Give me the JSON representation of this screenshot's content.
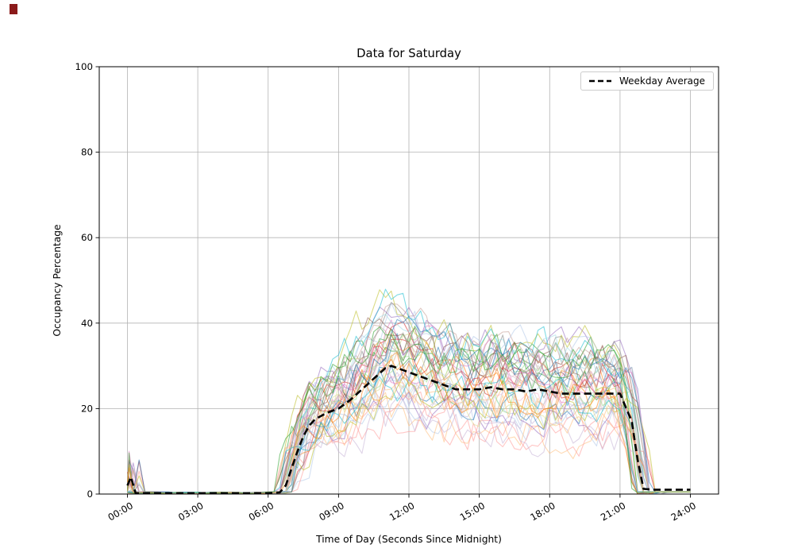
{
  "artifact": {
    "corner_marker_color": "#8b1a1a"
  },
  "chart_data": {
    "type": "line",
    "title": "Data for Saturday",
    "xlabel": "Time of Day (Seconds Since Midnight)",
    "ylabel": "Occupancy Percentage",
    "x_ticks_hours": [
      0,
      3,
      6,
      9,
      12,
      15,
      18,
      21,
      24
    ],
    "x_tick_labels": [
      "00:00",
      "03:00",
      "06:00",
      "09:00",
      "12:00",
      "15:00",
      "18:00",
      "21:00",
      "24:00"
    ],
    "y_ticks": [
      0,
      20,
      40,
      60,
      80,
      100
    ],
    "ylim": [
      0,
      100
    ],
    "xlim_hours": [
      -1.2,
      25.2
    ],
    "grid": true,
    "style": {
      "background": "#ffffff",
      "grid_color": "#b3b3b3",
      "spine_color": "#000000",
      "average_color": "#000000"
    },
    "legend": {
      "position": "top-right",
      "entries": [
        "Weekday Average"
      ]
    },
    "average_series": {
      "name": "Weekday Average",
      "dashed": true,
      "line_width": 2.6,
      "x_hours": [
        0,
        0.15,
        0.35,
        1,
        2,
        3,
        4,
        5,
        6,
        6.5,
        6.75,
        7,
        7.25,
        7.5,
        7.75,
        8,
        8.5,
        9,
        9.5,
        10,
        10.5,
        11,
        11.25,
        11.5,
        12,
        12.5,
        13,
        13.5,
        14,
        14.5,
        15,
        15.5,
        16,
        16.5,
        17,
        17.5,
        18,
        18.5,
        19,
        19.5,
        20,
        20.5,
        21,
        21.5,
        21.75,
        22,
        22.5,
        23,
        23.5,
        24
      ],
      "values": [
        2,
        4,
        0.2,
        0.2,
        0.2,
        0.2,
        0.2,
        0.2,
        0.2,
        0.4,
        2,
        6,
        10,
        13.5,
        16,
        17.5,
        19,
        20,
        22,
        24.5,
        27,
        29.5,
        30,
        29.5,
        28.5,
        27.5,
        26.5,
        25.5,
        24.5,
        24.5,
        24.5,
        25,
        24.5,
        24.5,
        24,
        24.5,
        24,
        23.5,
        23.5,
        23.5,
        23.5,
        23.5,
        23.5,
        17,
        8,
        1.2,
        1,
        1,
        1,
        1
      ]
    },
    "individual_traces": {
      "description": "Many individual day traces with random variation around the weekday average; flat near 0 from ~00:30 to ~06:30, active ~06:30-22:00 ranging ~10-50, brief spike up to ~10 just after midnight on a few traces",
      "count": 45,
      "sample_step_hours": 0.25,
      "opacity": 0.55,
      "line_width": 1.1,
      "active_start_hour": 6.6,
      "active_end_hour": 22.0,
      "plateau_range": [
        10,
        38
      ],
      "peak_max": 50,
      "colors": [
        "#1f77b4",
        "#aec7e8",
        "#ff7f0e",
        "#ffbb78",
        "#2ca02c",
        "#98df8a",
        "#d62728",
        "#ff9896",
        "#9467bd",
        "#c5b0d5",
        "#8c564b",
        "#c49c94",
        "#e377c2",
        "#f7b6d2",
        "#7f7f7f",
        "#c7c7c7",
        "#bcbd22",
        "#dbdb8d",
        "#17becf",
        "#9edae5"
      ]
    }
  }
}
